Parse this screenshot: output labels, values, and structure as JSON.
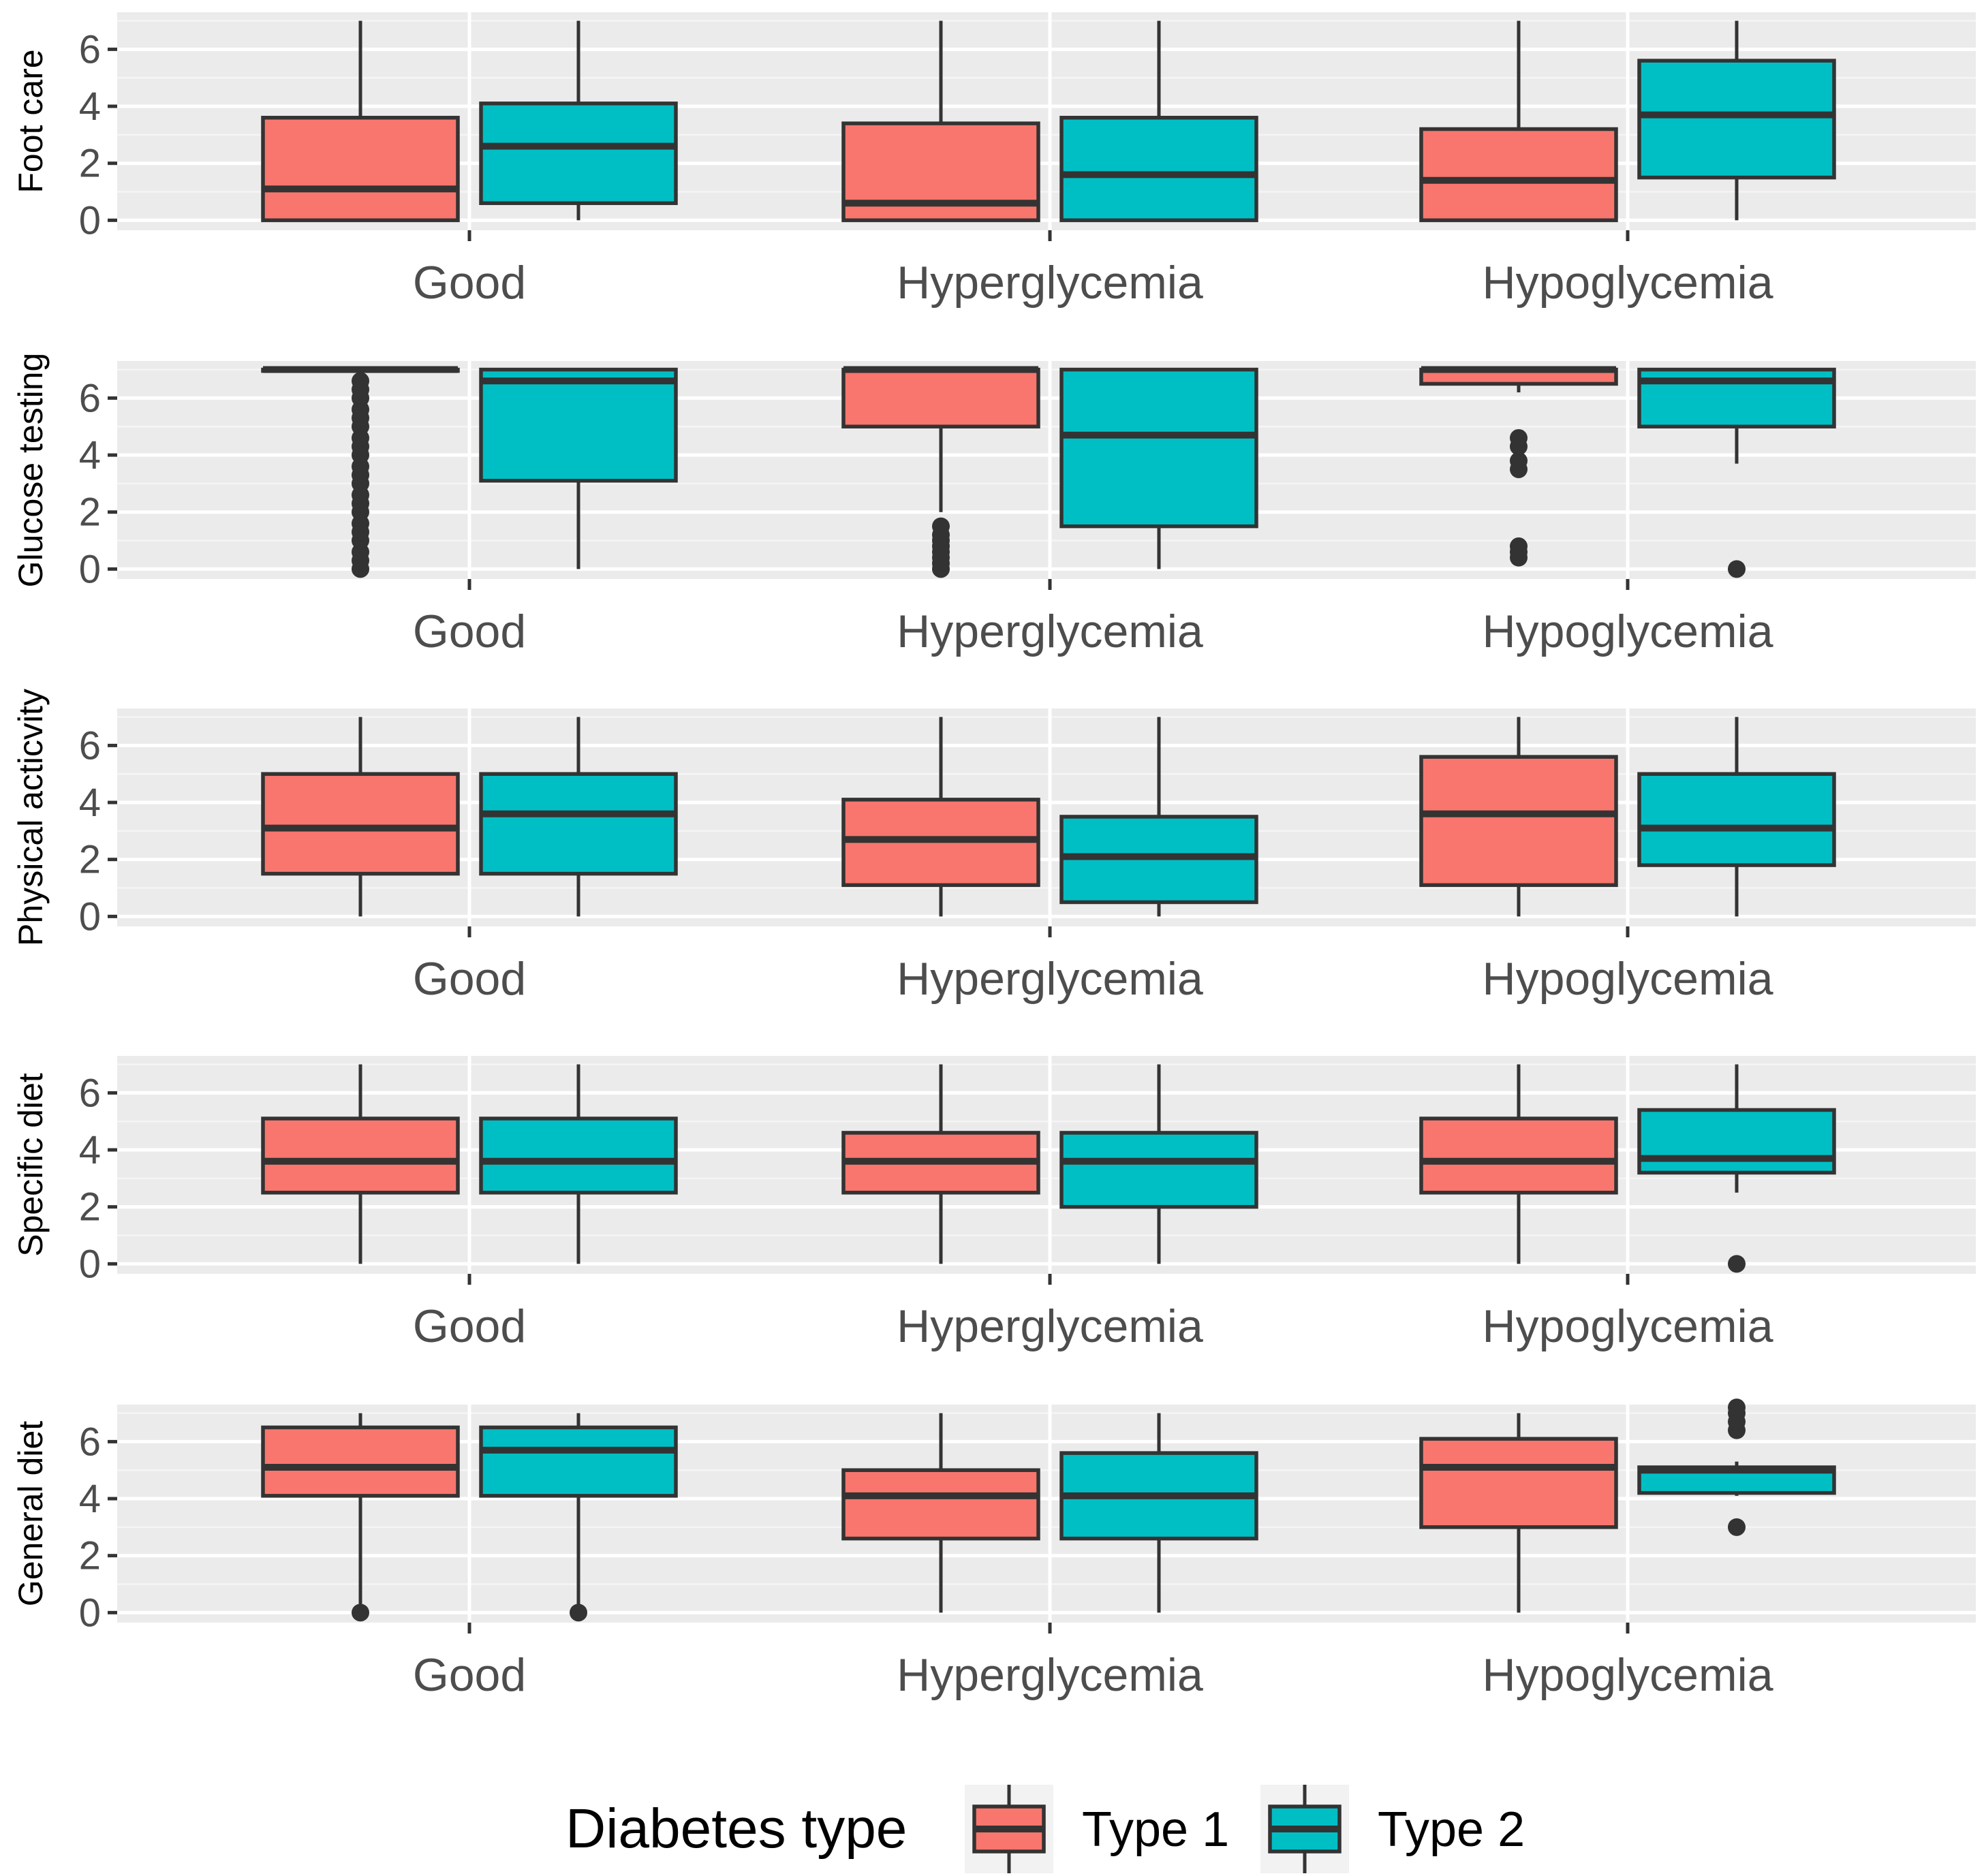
{
  "chart_data": {
    "type": "boxplot",
    "categories": [
      "Good",
      "Hyperglycemia",
      "Hypoglycemia"
    ],
    "ylim": [
      -0.35,
      7.3
    ],
    "yticks": [
      0,
      2,
      4,
      6
    ],
    "grid": true,
    "legend": {
      "title": "Diabetes type",
      "position": "bottom",
      "entries": [
        {
          "name": "Type 1",
          "color": "#f8766d"
        },
        {
          "name": "Type 2",
          "color": "#00bfc4"
        }
      ]
    },
    "panels": [
      {
        "ylabel": "Foot care",
        "groups": [
          [
            {
              "series": "Type 1",
              "min": 0,
              "q1": 0,
              "median": 1.1,
              "q3": 3.6,
              "max": 7,
              "outliers": []
            },
            {
              "series": "Type 2",
              "min": 0,
              "q1": 0.6,
              "median": 2.6,
              "q3": 4.1,
              "max": 7,
              "outliers": []
            }
          ],
          [
            {
              "series": "Type 1",
              "min": 0,
              "q1": 0,
              "median": 0.6,
              "q3": 3.4,
              "max": 7,
              "outliers": []
            },
            {
              "series": "Type 2",
              "min": 0,
              "q1": 0,
              "median": 1.6,
              "q3": 3.6,
              "max": 7,
              "outliers": []
            }
          ],
          [
            {
              "series": "Type 1",
              "min": 0,
              "q1": 0,
              "median": 1.4,
              "q3": 3.2,
              "max": 7,
              "outliers": []
            },
            {
              "series": "Type 2",
              "min": 0,
              "q1": 1.5,
              "median": 3.7,
              "q3": 5.6,
              "max": 7,
              "outliers": []
            }
          ]
        ]
      },
      {
        "ylabel": "Glucose testing",
        "groups": [
          [
            {
              "series": "Type 1",
              "min": 7,
              "q1": 7,
              "median": 7,
              "q3": 7,
              "max": 7,
              "outliers": [
                0,
                0.3,
                0.6,
                1.0,
                1.3,
                1.6,
                2.0,
                2.3,
                2.6,
                3.0,
                3.3,
                3.6,
                4.0,
                4.3,
                4.6,
                5.0,
                5.3,
                5.6,
                6.0,
                6.3,
                6.6
              ]
            },
            {
              "series": "Type 2",
              "min": 0,
              "q1": 3.1,
              "median": 6.6,
              "q3": 7,
              "max": 7,
              "outliers": []
            }
          ],
          [
            {
              "series": "Type 1",
              "min": 2.0,
              "q1": 5.0,
              "median": 7,
              "q3": 7,
              "max": 7,
              "outliers": [
                0,
                0.2,
                0.4,
                0.6,
                0.8,
                1.0,
                1.2,
                1.5
              ]
            },
            {
              "series": "Type 2",
              "min": 0,
              "q1": 1.5,
              "median": 4.7,
              "q3": 7,
              "max": 7,
              "outliers": []
            }
          ],
          [
            {
              "series": "Type 1",
              "min": 6.2,
              "q1": 6.5,
              "median": 7,
              "q3": 7,
              "max": 7,
              "outliers": [
                0.4,
                0.6,
                0.8,
                3.5,
                3.8,
                4.3,
                4.6
              ]
            },
            {
              "series": "Type 2",
              "min": 3.7,
              "q1": 5.0,
              "median": 6.6,
              "q3": 7,
              "max": 7,
              "outliers": [
                0
              ]
            }
          ]
        ]
      },
      {
        "ylabel": "Physical acticvity",
        "groups": [
          [
            {
              "series": "Type 1",
              "min": 0,
              "q1": 1.5,
              "median": 3.1,
              "q3": 5.0,
              "max": 7,
              "outliers": []
            },
            {
              "series": "Type 2",
              "min": 0,
              "q1": 1.5,
              "median": 3.6,
              "q3": 5.0,
              "max": 7,
              "outliers": []
            }
          ],
          [
            {
              "series": "Type 1",
              "min": 0,
              "q1": 1.1,
              "median": 2.7,
              "q3": 4.1,
              "max": 7,
              "outliers": []
            },
            {
              "series": "Type 2",
              "min": 0,
              "q1": 0.5,
              "median": 2.1,
              "q3": 3.5,
              "max": 7,
              "outliers": []
            }
          ],
          [
            {
              "series": "Type 1",
              "min": 0,
              "q1": 1.1,
              "median": 3.6,
              "q3": 5.6,
              "max": 7,
              "outliers": []
            },
            {
              "series": "Type 2",
              "min": 0,
              "q1": 1.8,
              "median": 3.1,
              "q3": 5.0,
              "max": 7,
              "outliers": []
            }
          ]
        ]
      },
      {
        "ylabel": "Specific diet",
        "groups": [
          [
            {
              "series": "Type 1",
              "min": 0,
              "q1": 2.5,
              "median": 3.6,
              "q3": 5.1,
              "max": 7,
              "outliers": []
            },
            {
              "series": "Type 2",
              "min": 0,
              "q1": 2.5,
              "median": 3.6,
              "q3": 5.1,
              "max": 7,
              "outliers": []
            }
          ],
          [
            {
              "series": "Type 1",
              "min": 0,
              "q1": 2.5,
              "median": 3.6,
              "q3": 4.6,
              "max": 7,
              "outliers": []
            },
            {
              "series": "Type 2",
              "min": 0,
              "q1": 2.0,
              "median": 3.6,
              "q3": 4.6,
              "max": 7,
              "outliers": []
            }
          ],
          [
            {
              "series": "Type 1",
              "min": 0,
              "q1": 2.5,
              "median": 3.6,
              "q3": 5.1,
              "max": 7,
              "outliers": []
            },
            {
              "series": "Type 2",
              "min": 2.5,
              "q1": 3.2,
              "median": 3.7,
              "q3": 5.4,
              "max": 7,
              "outliers": [
                0
              ]
            }
          ]
        ]
      },
      {
        "ylabel": "General diet",
        "groups": [
          [
            {
              "series": "Type 1",
              "min": 0.3,
              "q1": 4.1,
              "median": 5.1,
              "q3": 6.5,
              "max": 7,
              "outliers": [
                0
              ]
            },
            {
              "series": "Type 2",
              "min": 0.3,
              "q1": 4.1,
              "median": 5.7,
              "q3": 6.5,
              "max": 7,
              "outliers": [
                0
              ]
            }
          ],
          [
            {
              "series": "Type 1",
              "min": 0,
              "q1": 2.6,
              "median": 4.1,
              "q3": 5.0,
              "max": 7,
              "outliers": []
            },
            {
              "series": "Type 2",
              "min": 0,
              "q1": 2.6,
              "median": 4.1,
              "q3": 5.6,
              "max": 7,
              "outliers": []
            }
          ],
          [
            {
              "series": "Type 1",
              "min": 0,
              "q1": 3.0,
              "median": 5.1,
              "q3": 6.1,
              "max": 7,
              "outliers": []
            },
            {
              "series": "Type 2",
              "min": 4.1,
              "q1": 4.2,
              "median": 5.0,
              "q3": 5.1,
              "max": 5.3,
              "outliers": [
                3.0,
                6.4,
                6.7,
                7.0,
                7.2
              ]
            }
          ]
        ]
      }
    ]
  }
}
